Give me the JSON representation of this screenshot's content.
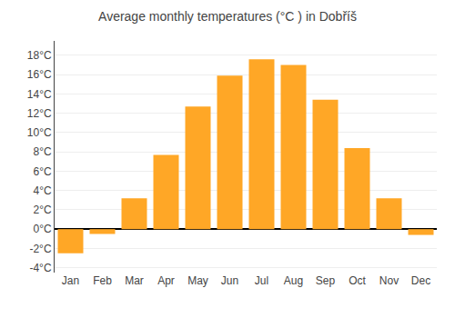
{
  "chart_data": {
    "type": "bar",
    "title": "Average monthly temperatures (°C ) in Dobříš",
    "categories": [
      "Jan",
      "Feb",
      "Mar",
      "Apr",
      "May",
      "Jun",
      "Jul",
      "Aug",
      "Sep",
      "Oct",
      "Nov",
      "Dec"
    ],
    "values": [
      -2.5,
      -0.5,
      3.2,
      7.7,
      12.7,
      15.9,
      17.6,
      17.0,
      13.4,
      8.4,
      3.2,
      -0.6
    ],
    "color": "#FFA726",
    "ylim": [
      -4.5,
      19.5
    ],
    "yticks": [
      {
        "value": -4,
        "label": "-4°C"
      },
      {
        "value": -2,
        "label": "-2°C"
      },
      {
        "value": 0,
        "label": "0°C"
      },
      {
        "value": 2,
        "label": "2°C"
      },
      {
        "value": 4,
        "label": "4°C"
      },
      {
        "value": 6,
        "label": "6°C"
      },
      {
        "value": 8,
        "label": "8°C"
      },
      {
        "value": 10,
        "label": "10°C"
      },
      {
        "value": 12,
        "label": "12°C"
      },
      {
        "value": 14,
        "label": "14°C"
      },
      {
        "value": 16,
        "label": "16°C"
      },
      {
        "value": 18,
        "label": "18°C"
      }
    ],
    "grid": true
  }
}
